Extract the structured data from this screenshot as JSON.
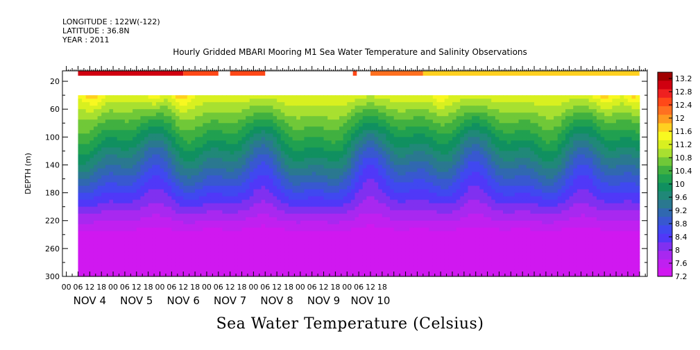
{
  "header": {
    "longitude": "LONGITUDE : 122W(-122)",
    "latitude": "LATITUDE : 36.8N",
    "year": "YEAR : 2011",
    "title": "Hourly Gridded MBARI Mooring M1 Sea Water Temperature and Salinity Observations"
  },
  "chart_data": {
    "type": "heatmap",
    "title": "Hourly Gridded MBARI Mooring M1 Sea Water Temperature and Salinity Observations",
    "xlabel": "",
    "ylabel": "DEPTH (m)",
    "bottom_title": "Sea Water Temperature (Celsius)",
    "y_ticks": [
      20,
      60,
      100,
      140,
      180,
      220,
      260,
      300
    ],
    "ylim": [
      5,
      300
    ],
    "hour_ticks": [
      "00",
      "06",
      "12",
      "18",
      "00",
      "06",
      "12",
      "18",
      "00",
      "06",
      "12",
      "18",
      "00",
      "06",
      "12",
      "18",
      "00",
      "06",
      "12",
      "18",
      "00",
      "06",
      "12",
      "18",
      "00",
      "06",
      "12",
      "18"
    ],
    "day_labels": [
      "NOV  4",
      "NOV  5",
      "NOV  6",
      "NOV  7",
      "NOV  8",
      "NOV  9",
      "NOV 10"
    ],
    "colorbar": {
      "labels": [
        "13.2",
        "12.8",
        "12.4",
        "12",
        "11.6",
        "11.2",
        "10.8",
        "10.4",
        "10",
        "9.6",
        "9.2",
        "8.8",
        "8.4",
        "8",
        "7.6",
        "7.2"
      ],
      "colors": [
        "#a00000",
        "#d00010",
        "#ef2020",
        "#ff4818",
        "#ff7020",
        "#ff9a20",
        "#ffd020",
        "#f8f820",
        "#d8f020",
        "#a8e030",
        "#70c838",
        "#40b040",
        "#20a050",
        "#109060",
        "#208878",
        "#2a7890",
        "#3068b0",
        "#3858d0",
        "#4048f0",
        "#5038f8",
        "#8030f0",
        "#a828f0",
        "#c020f0",
        "#d018f0"
      ]
    },
    "surface_band": {
      "depth_range": [
        5,
        12
      ],
      "segments": [
        {
          "from_hour": 6,
          "to_hour": 60,
          "value": 13.1
        },
        {
          "from_hour": 60,
          "to_hour": 78,
          "value": 12.6
        },
        {
          "from_hour": 84,
          "to_hour": 102,
          "value": 12.5
        },
        {
          "from_hour": 147,
          "to_hour": 149,
          "value": 12.4
        },
        {
          "from_hour": 156,
          "to_hour": 183,
          "value": 12.3
        },
        {
          "from_hour": 183,
          "to_hour": 294,
          "value": 11.7
        }
      ]
    },
    "profile_start_depth": 40,
    "data_start_hour": 6,
    "data_end_hour": 294,
    "x_hours_range": [
      -2,
      298
    ]
  }
}
